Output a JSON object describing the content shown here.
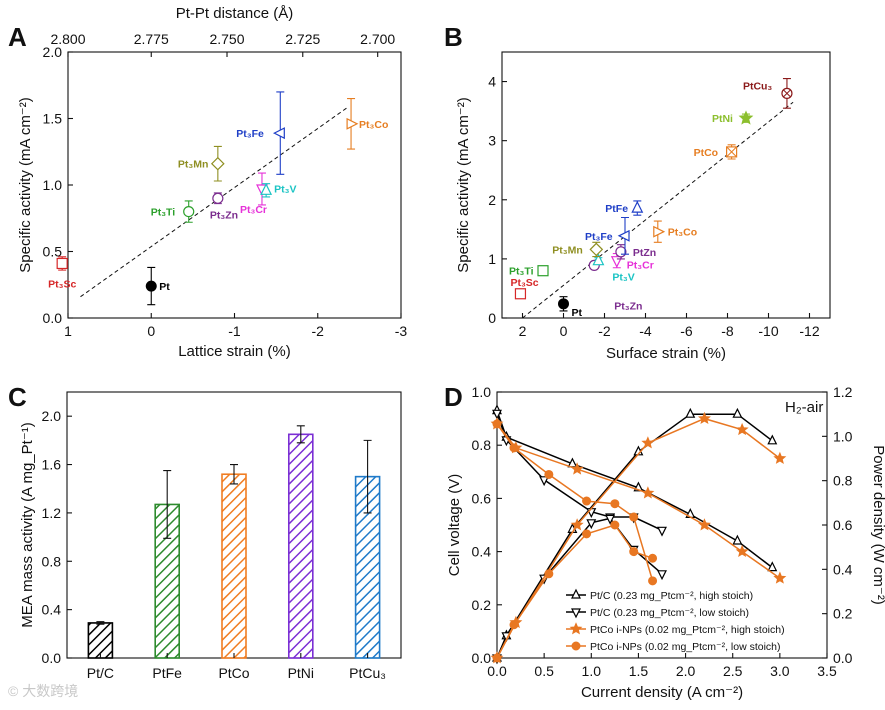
{
  "watermark": "© 大数跨境",
  "chart_data": [
    {
      "panel": "A",
      "type": "scatter",
      "xlabel": "Lattice strain (%)",
      "ylabel": "Specific activity (mA cm⁻²)",
      "x2label": "Pt-Pt distance (Å)",
      "x_reversed": true,
      "xlim": [
        1,
        -3
      ],
      "ylim": [
        0,
        2.0
      ],
      "xticks": [
        1,
        0,
        -1,
        -2,
        -3
      ],
      "xtick_labels": [
        "1",
        "0",
        "-1",
        "-2",
        "-3"
      ],
      "yticks": [
        0.0,
        0.5,
        1.0,
        1.5,
        2.0
      ],
      "ytick_labels": [
        "0.0",
        "0.5",
        "1.0",
        "1.5",
        "2.0"
      ],
      "x2ticks": [
        1.0,
        0.0,
        -0.91,
        -1.82,
        -2.72
      ],
      "x2tick_labels": [
        "2.800",
        "2.775",
        "2.750",
        "2.725",
        "2.700"
      ],
      "points": [
        {
          "label": "Pt",
          "x": 0.0,
          "y": 0.24,
          "err": 0.14,
          "marker": "circle-filled",
          "color": "#000000",
          "lx": 8,
          "ly": 4
        },
        {
          "label": "Pt₃Sc",
          "x": 1.07,
          "y": 0.41,
          "err": 0.05,
          "marker": "square",
          "color": "#d62728",
          "lx": -14,
          "ly": 24
        },
        {
          "label": "Pt₃Ti",
          "x": -0.45,
          "y": 0.8,
          "err": 0.08,
          "marker": "circle",
          "color": "#2ca02c",
          "lx": -38,
          "ly": 4
        },
        {
          "label": "Pt₃Zn",
          "x": -0.8,
          "y": 0.9,
          "err": 0.04,
          "marker": "circle",
          "color": "#7b2d8e",
          "lx": -8,
          "ly": 20
        },
        {
          "label": "Pt₃Mn",
          "x": -0.8,
          "y": 1.16,
          "err": 0.13,
          "marker": "diamond",
          "color": "#8f8f22",
          "lx": -40,
          "ly": 4
        },
        {
          "label": "Pt₃Cr",
          "x": -1.33,
          "y": 0.97,
          "err": 0.12,
          "marker": "tri-down",
          "color": "#e631d8",
          "lx": -22,
          "ly": 24
        },
        {
          "label": "Pt₃V",
          "x": -1.38,
          "y": 0.96,
          "err": 0.05,
          "marker": "tri-up",
          "color": "#1bc4c4",
          "lx": 8,
          "ly": 2
        },
        {
          "label": "Pt₃Fe",
          "x": -1.55,
          "y": 1.39,
          "err": 0.31,
          "marker": "tri-left",
          "color": "#1f3fc7",
          "lx": -44,
          "ly": 4
        },
        {
          "label": "Pt₃Co",
          "x": -2.4,
          "y": 1.46,
          "err": 0.19,
          "marker": "tri-right",
          "color": "#e67e22",
          "lx": 8,
          "ly": 4
        }
      ],
      "fit_line": {
        "x": [
          0.85,
          -2.35
        ],
        "y": [
          0.16,
          1.58
        ]
      }
    },
    {
      "panel": "B",
      "type": "scatter",
      "xlabel": "Surface strain (%)",
      "ylabel": "Specific activity (mA cm⁻²)",
      "x_reversed": true,
      "xlim": [
        3,
        -13
      ],
      "ylim": [
        0,
        4.5
      ],
      "xticks": [
        2,
        0,
        -2,
        -4,
        -6,
        -8,
        -10,
        -12
      ],
      "xtick_labels": [
        "2",
        "0",
        "-2",
        "-4",
        "-6",
        "-8",
        "-10",
        "-12"
      ],
      "yticks": [
        0,
        1,
        2,
        3,
        4
      ],
      "ytick_labels": [
        "0",
        "1",
        "2",
        "3",
        "4"
      ],
      "points": [
        {
          "label": "Pt",
          "x": 0.0,
          "y": 0.24,
          "err": 0.12,
          "marker": "circle-filled",
          "color": "#000000",
          "lx": 8,
          "ly": 12
        },
        {
          "label": "Pt₃Sc",
          "x": 2.1,
          "y": 0.41,
          "err": 0.05,
          "marker": "square",
          "color": "#d62728",
          "lx": -10,
          "ly": -8
        },
        {
          "label": "Pt₃Ti",
          "x": 1.0,
          "y": 0.8,
          "err": 0.07,
          "marker": "square",
          "color": "#2ca02c",
          "lx": -34,
          "ly": 4
        },
        {
          "label": "Pt₃Zn",
          "x": -1.5,
          "y": 0.89,
          "err": 0.05,
          "marker": "circle",
          "color": "#7b2d8e",
          "lx": 20,
          "ly": 44
        },
        {
          "label": "Pt₃V",
          "x": -1.7,
          "y": 0.97,
          "err": 0.05,
          "marker": "tri-up",
          "color": "#1bc4c4",
          "lx": 14,
          "ly": 20
        },
        {
          "label": "Pt₃Mn",
          "x": -1.6,
          "y": 1.16,
          "err": 0.12,
          "marker": "diamond",
          "color": "#8f8f22",
          "lx": -44,
          "ly": 4
        },
        {
          "label": "Pt₃Cr",
          "x": -2.6,
          "y": 0.97,
          "err": 0.12,
          "marker": "tri-down",
          "color": "#e631d8",
          "lx": 10,
          "ly": 8
        },
        {
          "label": "PtZn",
          "x": -2.8,
          "y": 1.12,
          "err": 0.12,
          "marker": "circle",
          "color": "#7b2d8e",
          "lx": 12,
          "ly": 4
        },
        {
          "label": "Pt₃Fe",
          "x": -3.0,
          "y": 1.39,
          "err": 0.31,
          "marker": "tri-left",
          "color": "#1f3fc7",
          "lx": -40,
          "ly": 4
        },
        {
          "label": "PtFe",
          "x": -3.6,
          "y": 1.86,
          "err": 0.12,
          "marker": "tri-up",
          "color": "#1f3fc7",
          "lx": -32,
          "ly": 4
        },
        {
          "label": "Pt₃Co",
          "x": -4.6,
          "y": 1.46,
          "err": 0.18,
          "marker": "tri-right",
          "color": "#e67e22",
          "lx": 10,
          "ly": 4
        },
        {
          "label": "PtCo",
          "x": -8.2,
          "y": 2.81,
          "err": 0.12,
          "marker": "square-x",
          "color": "#e67e22",
          "lx": -38,
          "ly": 4
        },
        {
          "label": "PtNi",
          "x": -8.9,
          "y": 3.38,
          "err": 0.07,
          "marker": "star",
          "color": "#8cbf2e",
          "lx": -34,
          "ly": 4
        },
        {
          "label": "PtCu₃",
          "x": -10.9,
          "y": 3.8,
          "err": 0.25,
          "marker": "circle-x",
          "color": "#8b1a1a",
          "lx": -44,
          "ly": -4
        }
      ],
      "fit_line": {
        "x": [
          2.0,
          -11.2
        ],
        "y": [
          0.0,
          3.65
        ]
      }
    },
    {
      "panel": "C",
      "type": "bar",
      "ylabel": "MEA mass activity (A mg_Pt⁻¹)",
      "categories": [
        "Pt/C",
        "PtFe",
        "PtCo",
        "PtNi",
        "PtCu₃"
      ],
      "values": [
        0.29,
        1.27,
        1.52,
        1.85,
        1.5
      ],
      "errors": [
        0.01,
        0.28,
        0.08,
        0.07,
        0.3
      ],
      "colors": [
        "#000000",
        "#2e8b2e",
        "#f07d22",
        "#7b2fd4",
        "#1f7ac9"
      ],
      "ylim": [
        0,
        2.2
      ],
      "yticks": [
        0.0,
        0.4,
        0.8,
        1.2,
        1.6,
        2.0
      ],
      "ytick_labels": [
        "0.0",
        "0.4",
        "0.8",
        "1.2",
        "1.6",
        "2.0"
      ]
    },
    {
      "panel": "D",
      "type": "line",
      "xlabel": "Current density (A cm⁻²)",
      "ylabel": "Cell voltage (V)",
      "y2label": "Power density (W cm⁻²)",
      "annotation": "H₂-air",
      "xlim": [
        0,
        3.5
      ],
      "ylim": [
        0,
        1.0
      ],
      "y2lim": [
        0,
        1.2
      ],
      "xticks": [
        0.0,
        0.5,
        1.0,
        1.5,
        2.0,
        2.5,
        3.0,
        3.5
      ],
      "xtick_labels": [
        "0.0",
        "0.5",
        "1.0",
        "1.5",
        "2.0",
        "2.5",
        "3.0",
        "3.5"
      ],
      "yticks": [
        0.0,
        0.2,
        0.4,
        0.6,
        0.8,
        1.0
      ],
      "ytick_labels": [
        "0.0",
        "0.2",
        "0.4",
        "0.6",
        "0.8",
        "1.0"
      ],
      "y2ticks": [
        0.0,
        0.2,
        0.4,
        0.6,
        0.8,
        1.0,
        1.2
      ],
      "y2tick_labels": [
        "0.0",
        "0.2",
        "0.4",
        "0.6",
        "0.8",
        "1.0",
        "1.2"
      ],
      "legend": [
        {
          "name": "Pt/C (0.23 mg_Ptcm⁻², high stoich)",
          "marker": "tri-up",
          "color": "#000000"
        },
        {
          "name": "Pt/C (0.23 mg_Ptcm⁻², low stoich)",
          "marker": "tri-down",
          "color": "#000000"
        },
        {
          "name": "PtCo i-NPs (0.02 mg_Ptcm⁻², high stoich)",
          "marker": "star",
          "color": "#e87722"
        },
        {
          "name": "PtCo i-NPs (0.02 mg_Ptcm⁻², low stoich)",
          "marker": "circle-filled",
          "color": "#e87722"
        }
      ],
      "series": [
        {
          "legend_index": 0,
          "axis": "left",
          "marker": "tri-up",
          "color": "#000000",
          "x": [
            0.0,
            0.1,
            0.8,
            1.5,
            2.05,
            2.55,
            2.92
          ],
          "y": [
            0.93,
            0.83,
            0.73,
            0.64,
            0.54,
            0.44,
            0.34
          ]
        },
        {
          "legend_index": 0,
          "axis": "right",
          "marker": "tri-up",
          "color": "#000000",
          "x": [
            0.0,
            0.1,
            0.8,
            1.5,
            2.05,
            2.55,
            2.92
          ],
          "y": [
            0.0,
            0.1,
            0.58,
            0.93,
            1.1,
            1.1,
            0.98
          ]
        },
        {
          "legend_index": 1,
          "axis": "left",
          "marker": "tri-down",
          "color": "#000000",
          "x": [
            0.0,
            0.1,
            0.5,
            1.0,
            1.2,
            1.45,
            1.75
          ],
          "y": [
            0.92,
            0.82,
            0.67,
            0.55,
            0.53,
            0.53,
            0.48
          ]
        },
        {
          "legend_index": 1,
          "axis": "right",
          "marker": "tri-down",
          "color": "#000000",
          "x": [
            0.0,
            0.1,
            0.5,
            1.0,
            1.2,
            1.45,
            1.75
          ],
          "y": [
            0.0,
            0.1,
            0.36,
            0.61,
            0.63,
            0.49,
            0.38
          ]
        },
        {
          "legend_index": 2,
          "axis": "left",
          "marker": "star",
          "color": "#e87722",
          "x": [
            0.0,
            0.2,
            0.85,
            1.6,
            2.2,
            2.6,
            3.0
          ],
          "y": [
            0.88,
            0.79,
            0.71,
            0.62,
            0.5,
            0.4,
            0.3
          ]
        },
        {
          "legend_index": 2,
          "axis": "right",
          "marker": "star",
          "color": "#e87722",
          "x": [
            0.0,
            0.2,
            0.85,
            1.6,
            2.2,
            2.6,
            3.0
          ],
          "y": [
            0.0,
            0.16,
            0.6,
            0.97,
            1.08,
            1.03,
            0.9
          ]
        },
        {
          "legend_index": 3,
          "axis": "left",
          "marker": "circle-filled",
          "color": "#e87722",
          "x": [
            0.0,
            0.18,
            0.55,
            0.95,
            1.25,
            1.45,
            1.65
          ],
          "y": [
            0.88,
            0.79,
            0.69,
            0.59,
            0.58,
            0.53,
            0.29
          ]
        },
        {
          "legend_index": 3,
          "axis": "right",
          "marker": "circle-filled",
          "color": "#e87722",
          "x": [
            0.0,
            0.18,
            0.55,
            0.95,
            1.25,
            1.45,
            1.65
          ],
          "y": [
            0.0,
            0.15,
            0.38,
            0.56,
            0.6,
            0.48,
            0.45
          ]
        }
      ]
    }
  ]
}
